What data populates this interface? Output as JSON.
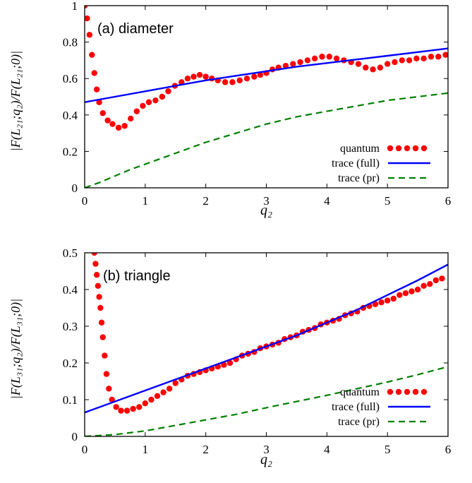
{
  "chart_data": [
    {
      "type": "line",
      "panel_label": "(a) diameter",
      "xlabel": "q₂",
      "ylabel": "|F(L₂₁;q₂)/F(L₂₁;0)|",
      "xlim": [
        0,
        6
      ],
      "ylim": [
        0,
        1
      ],
      "xticks": [
        "0",
        "1",
        "2",
        "3",
        "4",
        "5",
        "6"
      ],
      "yticks": [
        "0",
        "0.2",
        "0.4",
        "0.6",
        "0.8",
        "1"
      ],
      "grid": false,
      "legend_position": "bottom-right",
      "series": [
        {
          "name": "quantum",
          "style": "dots",
          "color": "#ff0000",
          "x": [
            0.0,
            0.04,
            0.08,
            0.12,
            0.16,
            0.2,
            0.24,
            0.3,
            0.38,
            0.46,
            0.56,
            0.66,
            0.76,
            0.86,
            0.96,
            1.06,
            1.17,
            1.28,
            1.38,
            1.49,
            1.6,
            1.7,
            1.8,
            1.9,
            2.0,
            2.1,
            2.2,
            2.32,
            2.44,
            2.56,
            2.68,
            2.8,
            2.9,
            3.0,
            3.1,
            3.2,
            3.32,
            3.44,
            3.56,
            3.68,
            3.8,
            3.92,
            4.04,
            4.16,
            4.28,
            4.4,
            4.52,
            4.64,
            4.76,
            4.88,
            5.0,
            5.12,
            5.24,
            5.36,
            5.48,
            5.6,
            5.72,
            5.84,
            5.96
          ],
          "y": [
            1.0,
            0.93,
            0.84,
            0.73,
            0.63,
            0.54,
            0.47,
            0.41,
            0.37,
            0.35,
            0.33,
            0.34,
            0.38,
            0.42,
            0.45,
            0.47,
            0.48,
            0.5,
            0.53,
            0.56,
            0.58,
            0.6,
            0.61,
            0.62,
            0.61,
            0.6,
            0.59,
            0.58,
            0.58,
            0.59,
            0.6,
            0.61,
            0.62,
            0.63,
            0.65,
            0.66,
            0.67,
            0.68,
            0.69,
            0.7,
            0.71,
            0.72,
            0.72,
            0.71,
            0.7,
            0.69,
            0.68,
            0.66,
            0.65,
            0.66,
            0.68,
            0.69,
            0.7,
            0.7,
            0.71,
            0.71,
            0.72,
            0.72,
            0.73
          ]
        },
        {
          "name": "trace (full)",
          "style": "solid",
          "color": "#0000ff",
          "x": [
            0,
            0.5,
            1,
            1.5,
            2,
            2.5,
            3,
            3.5,
            4,
            4.5,
            5,
            5.5,
            6
          ],
          "y": [
            0.47,
            0.5,
            0.53,
            0.56,
            0.59,
            0.615,
            0.64,
            0.665,
            0.685,
            0.705,
            0.725,
            0.745,
            0.765
          ]
        },
        {
          "name": "trace (pr)",
          "style": "dashed",
          "color": "#008000",
          "x": [
            0,
            0.25,
            0.5,
            0.75,
            1,
            1.5,
            2,
            2.5,
            3,
            3.5,
            4,
            4.5,
            5,
            5.5,
            6
          ],
          "y": [
            0.0,
            0.03,
            0.065,
            0.1,
            0.13,
            0.19,
            0.25,
            0.3,
            0.35,
            0.39,
            0.42,
            0.45,
            0.48,
            0.5,
            0.52
          ]
        }
      ]
    },
    {
      "type": "line",
      "panel_label": "(b) triangle",
      "xlabel": "q₂",
      "ylabel": "|F(L₃₁;q₂)/F(L₃₁;0)|",
      "xlim": [
        0,
        6
      ],
      "ylim": [
        0,
        0.5
      ],
      "xticks": [
        "0",
        "1",
        "2",
        "3",
        "4",
        "5",
        "6"
      ],
      "yticks": [
        "0",
        "0.1",
        "0.2",
        "0.3",
        "0.4",
        "0.5"
      ],
      "grid": false,
      "legend_position": "bottom-right",
      "series": [
        {
          "name": "quantum",
          "style": "dots",
          "color": "#ff0000",
          "x": [
            0.16,
            0.18,
            0.2,
            0.22,
            0.24,
            0.26,
            0.28,
            0.3,
            0.33,
            0.36,
            0.4,
            0.45,
            0.52,
            0.6,
            0.7,
            0.8,
            0.9,
            1.0,
            1.1,
            1.2,
            1.3,
            1.4,
            1.5,
            1.6,
            1.7,
            1.8,
            1.9,
            2.0,
            2.1,
            2.2,
            2.3,
            2.4,
            2.5,
            2.6,
            2.7,
            2.8,
            2.9,
            3.0,
            3.1,
            3.2,
            3.3,
            3.4,
            3.5,
            3.6,
            3.7,
            3.8,
            3.9,
            4.0,
            4.1,
            4.2,
            4.3,
            4.4,
            4.5,
            4.6,
            4.7,
            4.8,
            4.9,
            5.0,
            5.1,
            5.2,
            5.3,
            5.4,
            5.5,
            5.6,
            5.7,
            5.8,
            5.9
          ],
          "y": [
            0.5,
            0.47,
            0.44,
            0.41,
            0.38,
            0.35,
            0.31,
            0.27,
            0.22,
            0.17,
            0.13,
            0.1,
            0.08,
            0.07,
            0.07,
            0.075,
            0.08,
            0.09,
            0.1,
            0.11,
            0.12,
            0.13,
            0.145,
            0.155,
            0.165,
            0.17,
            0.175,
            0.18,
            0.185,
            0.19,
            0.195,
            0.2,
            0.21,
            0.22,
            0.225,
            0.23,
            0.24,
            0.245,
            0.25,
            0.255,
            0.265,
            0.27,
            0.275,
            0.285,
            0.29,
            0.295,
            0.305,
            0.31,
            0.315,
            0.32,
            0.33,
            0.335,
            0.34,
            0.35,
            0.355,
            0.36,
            0.365,
            0.37,
            0.375,
            0.385,
            0.39,
            0.395,
            0.4,
            0.41,
            0.415,
            0.425,
            0.43
          ]
        },
        {
          "name": "trace (full)",
          "style": "solid",
          "color": "#0000ff",
          "x": [
            0,
            0.5,
            1,
            1.5,
            2,
            2.5,
            3,
            3.5,
            4,
            4.5,
            5,
            5.5,
            6
          ],
          "y": [
            0.065,
            0.095,
            0.125,
            0.155,
            0.185,
            0.215,
            0.245,
            0.275,
            0.31,
            0.345,
            0.385,
            0.425,
            0.468
          ]
        },
        {
          "name": "trace (pr)",
          "style": "dashed",
          "color": "#008000",
          "x": [
            0,
            0.5,
            1,
            1.5,
            2,
            2.5,
            3,
            3.5,
            4,
            4.5,
            5,
            5.5,
            6
          ],
          "y": [
            0.0,
            0.005,
            0.015,
            0.03,
            0.045,
            0.06,
            0.078,
            0.095,
            0.112,
            0.13,
            0.148,
            0.168,
            0.19
          ]
        }
      ]
    }
  ]
}
